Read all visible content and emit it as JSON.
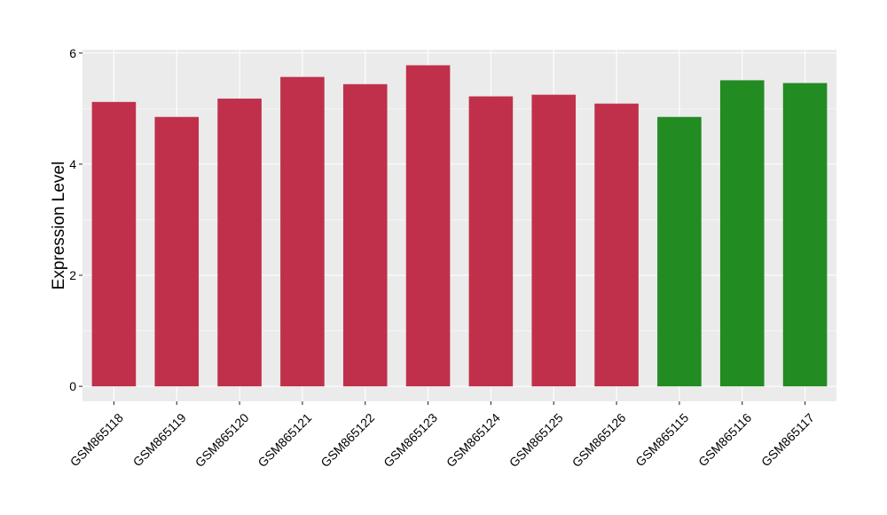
{
  "chart_data": {
    "type": "bar",
    "title": "",
    "xlabel": "",
    "ylabel": "Expression Level",
    "categories": [
      "GSM865118",
      "GSM865119",
      "GSM865120",
      "GSM865121",
      "GSM865122",
      "GSM865123",
      "GSM865124",
      "GSM865125",
      "GSM865126",
      "GSM865115",
      "GSM865116",
      "GSM865117"
    ],
    "values": [
      5.12,
      4.85,
      5.18,
      5.57,
      5.44,
      5.78,
      5.22,
      5.25,
      5.09,
      4.85,
      5.51,
      5.46
    ],
    "colors": [
      "#C0304B",
      "#C0304B",
      "#C0304B",
      "#C0304B",
      "#C0304B",
      "#C0304B",
      "#C0304B",
      "#C0304B",
      "#C0304B",
      "#228B22",
      "#228B22",
      "#228B22"
    ],
    "ylim": [
      -0.27,
      6.06
    ],
    "yticks": [
      0,
      2,
      4,
      6
    ],
    "ytick_labels": [
      "0",
      "2",
      "4",
      "6"
    ],
    "grid": true,
    "legend": "none",
    "panel_background": "#EBEBEB"
  }
}
